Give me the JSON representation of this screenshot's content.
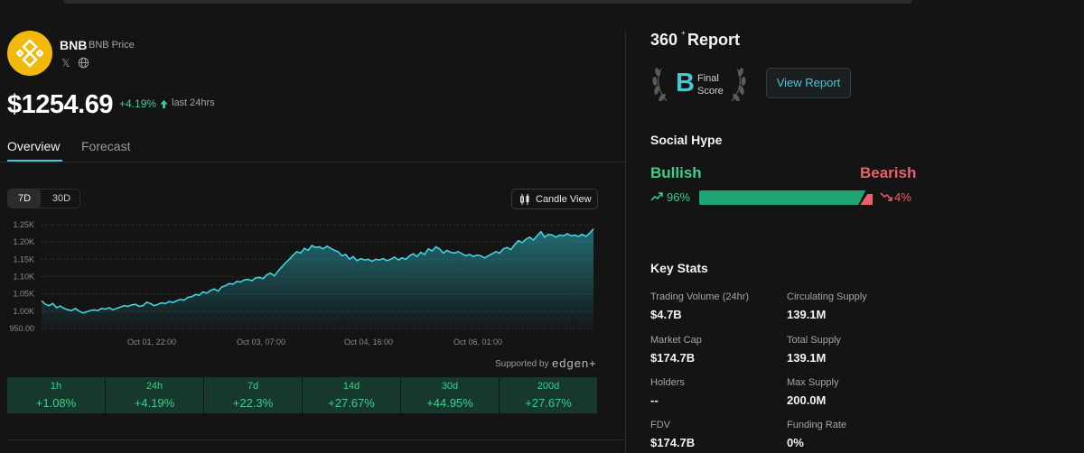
{
  "coin": {
    "symbol": "BNB",
    "subtitle": "BNB Price",
    "social": {
      "x_icon": "x-logo-icon",
      "web_icon": "globe-icon",
      "x_glyph": "𝕏"
    },
    "price": "$1254.69",
    "change_24h": "+4.19%",
    "change_period": "last 24hrs",
    "colors": {
      "brand": "#f0b90b",
      "accent": "#42c8d6",
      "positive": "#3ecf8e",
      "negative": "#e5636b"
    }
  },
  "tabs": [
    {
      "label": "Overview",
      "active": true
    },
    {
      "label": "Forecast",
      "active": false
    }
  ],
  "chart_controls": {
    "ranges": [
      {
        "label": "7D",
        "active": true
      },
      {
        "label": "30D",
        "active": false
      }
    ],
    "candle_view_label": "Candle View"
  },
  "chart_data": {
    "type": "area",
    "ylim": [
      950,
      1250
    ],
    "y_ticks": [
      "1.25K",
      "1.20K",
      "1.15K",
      "1.10K",
      "1.05K",
      "1.00K",
      "950.00"
    ],
    "x_ticks": [
      "Oct 01, 22:00",
      "Oct 03, 07:00",
      "Oct 04, 16:00",
      "Oct 06, 01:00"
    ],
    "values": [
      1030,
      1020,
      1016,
      1022,
      1010,
      1015,
      1008,
      1004,
      1002,
      1008,
      1000,
      995,
      998,
      1002,
      1004,
      1002,
      1008,
      1006,
      1010,
      1004,
      1008,
      1012,
      1016,
      1014,
      1018,
      1020,
      1014,
      1016,
      1026,
      1022,
      1016,
      1020,
      1024,
      1022,
      1028,
      1025,
      1030,
      1034,
      1032,
      1040,
      1042,
      1048,
      1046,
      1056,
      1052,
      1060,
      1064,
      1058,
      1070,
      1074,
      1080,
      1078,
      1086,
      1084,
      1090,
      1092,
      1088,
      1096,
      1098,
      1094,
      1105,
      1110,
      1102,
      1116,
      1128,
      1140,
      1150,
      1162,
      1172,
      1168,
      1182,
      1176,
      1190,
      1184,
      1186,
      1180,
      1188,
      1182,
      1176,
      1172,
      1160,
      1164,
      1150,
      1158,
      1146,
      1152,
      1148,
      1150,
      1144,
      1150,
      1148,
      1152,
      1146,
      1150,
      1156,
      1148,
      1154,
      1150,
      1160,
      1166,
      1158,
      1170,
      1164,
      1180,
      1174,
      1186,
      1180,
      1168,
      1176,
      1170,
      1168,
      1172,
      1166,
      1160,
      1164,
      1158,
      1162,
      1160,
      1154,
      1160,
      1166,
      1172,
      1168,
      1180,
      1184,
      1178,
      1192,
      1204,
      1198,
      1208,
      1214,
      1206,
      1218,
      1230,
      1214,
      1222,
      1220,
      1214,
      1220,
      1218,
      1224,
      1218,
      1220,
      1216,
      1222,
      1216,
      1226,
      1238
    ]
  },
  "attribution": {
    "supported_by": "Supported by",
    "brand": "edgen+"
  },
  "performance": [
    {
      "period": "1h",
      "value": "+1.08%"
    },
    {
      "period": "24h",
      "value": "+4.19%"
    },
    {
      "period": "7d",
      "value": "+22.3%"
    },
    {
      "period": "14d",
      "value": "+27.67%"
    },
    {
      "period": "30d",
      "value": "+44.95%"
    },
    {
      "period": "200d",
      "value": "+27.67%"
    }
  ],
  "report": {
    "title_number": "360",
    "title_sup": "+",
    "title_word": "Report",
    "grade": "B",
    "grade_label": "Final Score",
    "button": "View Report",
    "laurel_icon": "laurel-wreath-icon"
  },
  "social_hype": {
    "title": "Social Hype",
    "bullish_label": "Bullish",
    "bearish_label": "Bearish",
    "bullish_pct": "96%",
    "bearish_pct": "4%",
    "bullish_fraction": 0.96,
    "bull_icon": "trend-up-icon",
    "bear_icon": "trend-down-icon"
  },
  "key_stats": {
    "title": "Key Stats",
    "items": [
      {
        "label": "Trading Volume (24hr)",
        "value": "$4.7B"
      },
      {
        "label": "Circulating Supply",
        "value": "139.1M"
      },
      {
        "label": "Market Cap",
        "value": "$174.7B"
      },
      {
        "label": "Total Supply",
        "value": "139.1M"
      },
      {
        "label": "Holders",
        "value": "--"
      },
      {
        "label": "Max Supply",
        "value": "200.0M"
      },
      {
        "label": "FDV",
        "value": "$174.7B"
      },
      {
        "label": "Funding Rate",
        "value": "0%"
      }
    ]
  }
}
